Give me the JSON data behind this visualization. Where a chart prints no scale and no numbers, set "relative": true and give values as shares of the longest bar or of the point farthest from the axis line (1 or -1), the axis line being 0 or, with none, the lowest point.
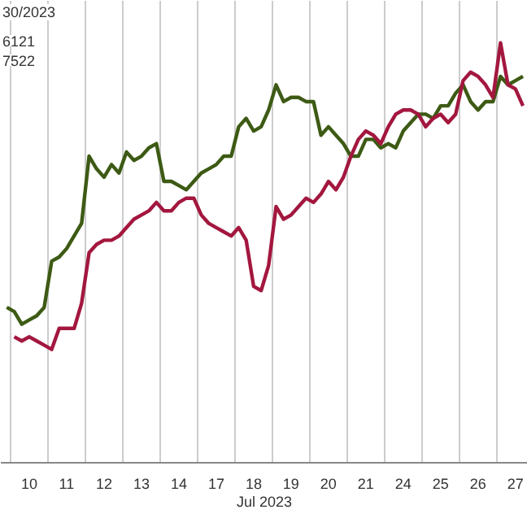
{
  "chart_data": {
    "type": "line",
    "relative": true,
    "xlabel": "Jul 2023",
    "grid": "x",
    "annotations": [
      "30/2023",
      "6121",
      "7522"
    ],
    "categories": [
      null,
      null,
      null,
      "10",
      null,
      null,
      null,
      null,
      "11",
      null,
      null,
      null,
      null,
      "12",
      null,
      null,
      null,
      null,
      "13",
      null,
      null,
      null,
      null,
      "14",
      null,
      null,
      null,
      null,
      "17",
      null,
      null,
      null,
      null,
      "18",
      null,
      null,
      null,
      null,
      "19",
      null,
      null,
      null,
      null,
      "20",
      null,
      null,
      null,
      null,
      "21",
      null,
      null,
      null,
      null,
      "24",
      null,
      null,
      null,
      null,
      "25",
      null,
      null,
      null,
      null,
      "26",
      null,
      null,
      null,
      null,
      "27",
      null
    ],
    "series": [
      {
        "color": "#3d5a14",
        "values": [
          0.37,
          0.36,
          0.33,
          0.34,
          0.35,
          0.37,
          0.48,
          0.49,
          0.51,
          0.54,
          0.57,
          0.73,
          0.7,
          0.68,
          0.71,
          0.69,
          0.74,
          0.72,
          0.73,
          0.75,
          0.76,
          0.67,
          0.67,
          0.66,
          0.65,
          0.67,
          0.69,
          0.7,
          0.71,
          0.73,
          0.73,
          0.8,
          0.82,
          0.79,
          0.8,
          0.84,
          0.9,
          0.86,
          0.87,
          0.87,
          0.86,
          0.86,
          0.78,
          0.8,
          0.78,
          0.76,
          0.73,
          0.73,
          0.77,
          0.77,
          0.75,
          0.76,
          0.75,
          0.79,
          0.81,
          0.83,
          0.83,
          0.82,
          0.85,
          0.85,
          0.88,
          0.9,
          0.86,
          0.84,
          0.86,
          0.86,
          0.92,
          0.9,
          0.91,
          0.92
        ]
      },
      {
        "color": "#a3173f",
        "values": [
          null,
          0.3,
          0.29,
          0.3,
          0.29,
          0.28,
          0.27,
          0.32,
          0.32,
          0.32,
          0.38,
          0.5,
          0.52,
          0.53,
          0.53,
          0.54,
          0.56,
          0.58,
          0.59,
          0.6,
          0.62,
          0.6,
          0.6,
          0.62,
          0.63,
          0.63,
          0.59,
          0.57,
          0.56,
          0.55,
          0.54,
          0.56,
          0.53,
          0.42,
          0.41,
          0.47,
          0.61,
          0.58,
          0.59,
          0.61,
          0.63,
          0.62,
          0.64,
          0.67,
          0.65,
          0.68,
          0.73,
          0.77,
          0.79,
          0.78,
          0.76,
          0.8,
          0.83,
          0.84,
          0.84,
          0.83,
          0.8,
          0.82,
          0.83,
          0.81,
          0.83,
          0.91,
          0.93,
          0.92,
          0.9,
          0.87,
          1.0,
          0.9,
          0.89,
          0.85
        ]
      }
    ]
  }
}
